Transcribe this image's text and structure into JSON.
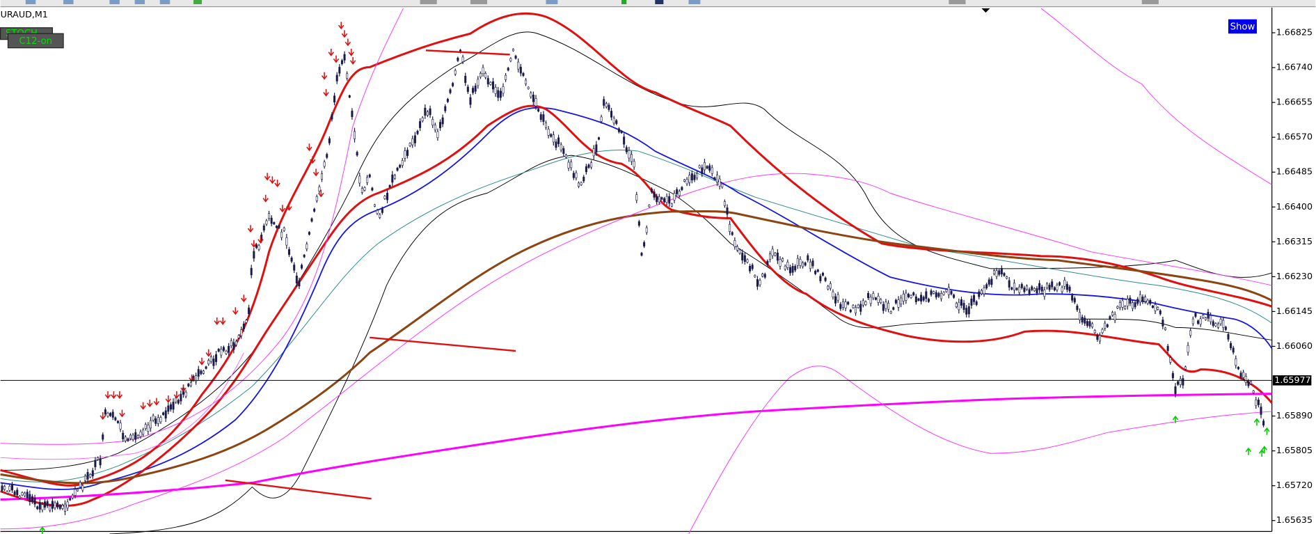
{
  "window": {
    "symbol": "URAUD,M1",
    "buttons": [
      "STOCH",
      "C12-on"
    ],
    "show_button": "Show"
  },
  "price_axis": {
    "ticks": [
      {
        "value": 1.66825,
        "label": "1.66825"
      },
      {
        "value": 1.6674,
        "label": "1.66740"
      },
      {
        "value": 1.66655,
        "label": "1.66655"
      },
      {
        "value": 1.6657,
        "label": "1.66570"
      },
      {
        "value": 1.66485,
        "label": "1.66485"
      },
      {
        "value": 1.664,
        "label": "1.66400"
      },
      {
        "value": 1.66315,
        "label": "1.66315"
      },
      {
        "value": 1.6623,
        "label": "1.66230"
      },
      {
        "value": 1.66145,
        "label": "1.66145"
      },
      {
        "value": 1.6606,
        "label": "1.66060"
      },
      {
        "value": 1.6589,
        "label": "1.65890"
      },
      {
        "value": 1.65805,
        "label": "1.65805"
      },
      {
        "value": 1.6572,
        "label": "1.65720"
      },
      {
        "value": 1.65635,
        "label": "1.65635"
      }
    ],
    "current_price": {
      "value": 1.65977,
      "label": "1.65977"
    }
  }
}
